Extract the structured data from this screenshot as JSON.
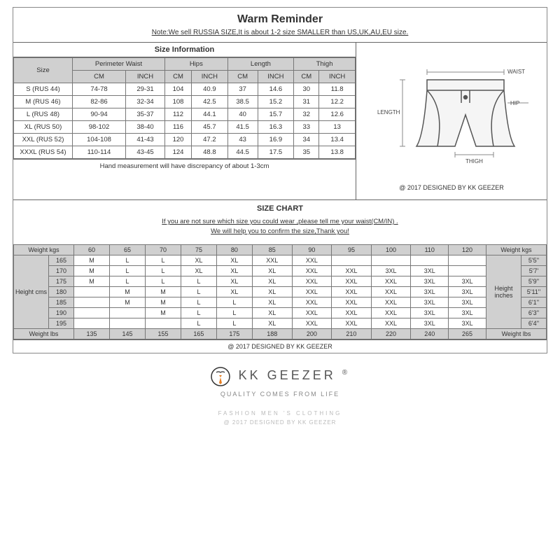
{
  "title": "Warm Reminder",
  "note": "Note:We sell RUSSIA SIZE,It is about 1-2 size SMALLER than US,UK,AU,EU size.",
  "sizeInfo": {
    "header": "Size Information",
    "cols": {
      "size": "Size",
      "pw": "Perimeter Waist",
      "hips": "Hips",
      "length": "Length",
      "thigh": "Thigh",
      "cm": "CM",
      "inch": "INCH"
    },
    "rows": [
      {
        "size": "S (RUS 44)",
        "pw_cm": "74-78",
        "pw_in": "29-31",
        "hip_cm": "104",
        "hip_in": "40.9",
        "len_cm": "37",
        "len_in": "14.6",
        "th_cm": "30",
        "th_in": "11.8"
      },
      {
        "size": "M (RUS 46)",
        "pw_cm": "82-86",
        "pw_in": "32-34",
        "hip_cm": "108",
        "hip_in": "42.5",
        "len_cm": "38.5",
        "len_in": "15.2",
        "th_cm": "31",
        "th_in": "12.2"
      },
      {
        "size": "L (RUS 48)",
        "pw_cm": "90-94",
        "pw_in": "35-37",
        "hip_cm": "112",
        "hip_in": "44.1",
        "len_cm": "40",
        "len_in": "15.7",
        "th_cm": "32",
        "th_in": "12.6"
      },
      {
        "size": "XL (RUS 50)",
        "pw_cm": "98-102",
        "pw_in": "38-40",
        "hip_cm": "116",
        "hip_in": "45.7",
        "len_cm": "41.5",
        "len_in": "16.3",
        "th_cm": "33",
        "th_in": "13"
      },
      {
        "size": "XXL (RUS 52)",
        "pw_cm": "104-108",
        "pw_in": "41-43",
        "hip_cm": "120",
        "hip_in": "47.2",
        "len_cm": "43",
        "len_in": "16.9",
        "th_cm": "34",
        "th_in": "13.4"
      },
      {
        "size": "XXXL (RUS 54)",
        "pw_cm": "110-114",
        "pw_in": "43-45",
        "hip_cm": "124",
        "hip_in": "48.8",
        "len_cm": "44.5",
        "len_in": "17.5",
        "th_cm": "35",
        "th_in": "13.8"
      }
    ],
    "foot": "Hand measurement will have discrepancy of about 1-3cm",
    "design": "@ 2017 DESIGNED BY KK GEEZER"
  },
  "diagram": {
    "waist": "WAIST",
    "hip": "HIP",
    "length": "LENGTH",
    "thigh": "THIGH"
  },
  "chart": {
    "title": "SIZE CHART",
    "note1": "If you are not sure which size you could wear ,please tell me your waist(CM/IN) .",
    "note2": "We will help you to confirm the size,Thank you!",
    "weight_kgs": "Weight  kgs",
    "weight_lbs": "Weight lbs",
    "height_cms": "Height cms",
    "height_in": "Height inches",
    "kgs": [
      "60",
      "65",
      "70",
      "75",
      "80",
      "85",
      "90",
      "95",
      "100",
      "110",
      "120"
    ],
    "lbs": [
      "135",
      "145",
      "155",
      "165",
      "175",
      "188",
      "200",
      "210",
      "220",
      "240",
      "265"
    ],
    "heights_cm": [
      "165",
      "170",
      "175",
      "180",
      "185",
      "190",
      "195"
    ],
    "heights_in": [
      "5'5''",
      "5'7'",
      "5'9''",
      "5'11''",
      "6'1''",
      "6'3''",
      "6'4''"
    ],
    "grid": [
      [
        "M",
        "L",
        "L",
        "XL",
        "XL",
        "XXL",
        "XXL",
        "",
        "",
        "",
        ""
      ],
      [
        "M",
        "L",
        "L",
        "XL",
        "XL",
        "XL",
        "XXL",
        "XXL",
        "3XL",
        "3XL",
        ""
      ],
      [
        "M",
        "L",
        "L",
        "L",
        "XL",
        "XL",
        "XXL",
        "XXL",
        "XXL",
        "3XL",
        "3XL"
      ],
      [
        "",
        "M",
        "M",
        "L",
        "XL",
        "XL",
        "XXL",
        "XXL",
        "XXL",
        "3XL",
        "3XL"
      ],
      [
        "",
        "M",
        "M",
        "L",
        "L",
        "XL",
        "XXL",
        "XXL",
        "XXL",
        "3XL",
        "3XL"
      ],
      [
        "",
        "",
        "M",
        "L",
        "L",
        "XL",
        "XXL",
        "XXL",
        "XXL",
        "3XL",
        "3XL"
      ],
      [
        "",
        "",
        "",
        "L",
        "L",
        "XL",
        "XXL",
        "XXL",
        "XXL",
        "3XL",
        "3XL"
      ]
    ],
    "design": "@ 2017 DESIGNED BY KK GEEZER"
  },
  "brand": {
    "name": "KK GEEZER",
    "reg": "®",
    "sub": "QUALITY COMES FROM LIFE",
    "foot1": "FASHION MEN 'S CLOTHING",
    "foot2": "@ 2017 DESIGNED BY KK GEEZER"
  },
  "colors": {
    "grey": "#d0d0d0",
    "border": "#777",
    "text": "#333"
  }
}
